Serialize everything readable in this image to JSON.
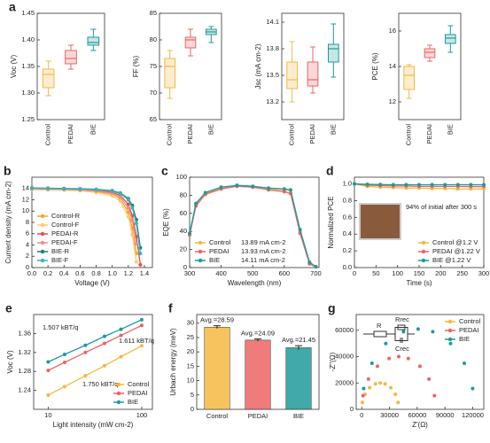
{
  "chart_data": [
    {
      "type": "box",
      "panel": "a",
      "ylabel": "Voc (V)",
      "categories": [
        "Control",
        "PEDAI",
        "BIE"
      ],
      "colors": [
        "#f5b841",
        "#ec6464",
        "#1f9a9a"
      ],
      "boxes": [
        {
          "min": 1.295,
          "q1": 1.31,
          "median": 1.335,
          "q3": 1.345,
          "max": 1.36
        },
        {
          "min": 1.345,
          "q1": 1.355,
          "median": 1.365,
          "q3": 1.38,
          "max": 1.39
        },
        {
          "min": 1.38,
          "q1": 1.39,
          "median": 1.395,
          "q3": 1.405,
          "max": 1.42
        }
      ],
      "ylim": [
        1.25,
        1.45
      ],
      "yticks": [
        1.25,
        {
          "value": 1.3,
          "label": "1.30"
        },
        1.35,
        {
          "value": 1.4,
          "label": "1.40"
        },
        1.45
      ]
    },
    {
      "type": "box",
      "ylabel": "FF (%)",
      "categories": [
        "Control",
        "PEDAI",
        "BIE"
      ],
      "colors": [
        "#f5b841",
        "#ec6464",
        "#1f9a9a"
      ],
      "boxes": [
        {
          "min": 69,
          "q1": 71,
          "median": 75,
          "q3": 76.5,
          "max": 78
        },
        {
          "min": 77,
          "q1": 78.5,
          "median": 80,
          "q3": 80.5,
          "max": 82
        },
        {
          "min": 79.5,
          "q1": 81,
          "median": 81.5,
          "q3": 82,
          "max": 82.5
        }
      ],
      "ylim": [
        65,
        85
      ],
      "yticks": [
        65,
        70,
        75,
        80,
        85
      ]
    },
    {
      "type": "box",
      "ylabel": "Jsc (mA cm-2)",
      "categories": [
        "Control",
        "PEDAI",
        "BIE"
      ],
      "colors": [
        "#f5b841",
        "#ec6464",
        "#1f9a9a"
      ],
      "boxes": [
        {
          "min": 13.2,
          "q1": 13.35,
          "median": 13.45,
          "q3": 13.65,
          "max": 13.88
        },
        {
          "min": 13.3,
          "q1": 13.38,
          "median": 13.45,
          "q3": 13.65,
          "max": 13.82
        },
        {
          "min": 13.48,
          "q1": 13.65,
          "median": 13.8,
          "q3": 13.85,
          "max": 14.08
        }
      ],
      "ylim": [
        13.0,
        14.2
      ],
      "yticks": [
        13.2,
        13.5,
        13.8,
        14.1
      ]
    },
    {
      "type": "box",
      "ylabel": "PCE (%)",
      "categories": [
        "Control",
        "PEDAI",
        "BIE"
      ],
      "colors": [
        "#f5b841",
        "#ec6464",
        "#1f9a9a"
      ],
      "boxes": [
        {
          "min": 12.2,
          "q1": 12.7,
          "median": 13.5,
          "q3": 14.0,
          "max": 14.1
        },
        {
          "min": 14.3,
          "q1": 14.5,
          "median": 14.8,
          "q3": 15.0,
          "max": 15.2
        },
        {
          "min": 14.8,
          "q1": 15.3,
          "median": 15.6,
          "q3": 15.8,
          "max": 16.3
        }
      ],
      "ylim": [
        11,
        17
      ],
      "yticks": [
        12,
        14,
        16
      ]
    },
    {
      "type": "line",
      "panel": "b",
      "xlabel": "Voltage (V)",
      "ylabel": "Current density (mA cm-2)",
      "legend": "lower left",
      "x": [
        0,
        0.2,
        0.4,
        0.6,
        0.8,
        1.0,
        1.1,
        1.2,
        1.25,
        1.3,
        1.35,
        1.4
      ],
      "series": [
        {
          "name": "Control-R",
          "color": "#f5a623",
          "values": [
            13.9,
            13.85,
            13.8,
            13.7,
            13.5,
            13.0,
            12.2,
            9.8,
            7.0,
            2.5,
            null,
            null
          ]
        },
        {
          "name": "Control-F",
          "color": "#f9cd6b",
          "values": [
            13.8,
            13.75,
            13.7,
            13.6,
            13.3,
            12.7,
            11.8,
            9.0,
            5.8,
            1.0,
            null,
            null
          ]
        },
        {
          "name": "PEDAI-R",
          "color": "#e84c4c",
          "values": [
            14.0,
            13.95,
            13.9,
            13.8,
            13.65,
            13.3,
            12.8,
            11.2,
            9.2,
            5.5,
            0.5,
            null
          ]
        },
        {
          "name": "PEDAI-F",
          "color": "#f28b8b",
          "values": [
            13.95,
            13.9,
            13.85,
            13.75,
            13.55,
            13.15,
            12.5,
            10.6,
            8.4,
            4.2,
            null,
            null
          ]
        },
        {
          "name": "BIE-R",
          "color": "#14807f",
          "values": [
            14.1,
            14.05,
            14.0,
            13.95,
            13.85,
            13.6,
            13.2,
            12.2,
            11.0,
            8.5,
            3.5,
            null
          ]
        },
        {
          "name": "BIE-F",
          "color": "#3bb3b3",
          "values": [
            14.05,
            14.0,
            13.95,
            13.9,
            13.8,
            13.5,
            13.1,
            12.0,
            10.6,
            7.8,
            2.5,
            null
          ]
        }
      ],
      "xlim": [
        0,
        1.5
      ],
      "xticks": [
        {
          "value": 0,
          "label": "0.0"
        },
        0.2,
        0.4,
        0.6,
        0.8,
        {
          "value": 1,
          "label": "1.0"
        },
        1.2,
        1.4
      ],
      "ylim": [
        0,
        16
      ],
      "yticks": [
        0,
        2,
        4,
        6,
        8,
        10,
        12,
        14
      ]
    },
    {
      "type": "line",
      "panel": "c",
      "xlabel": "Wavelength (nm)",
      "ylabel": "EQE (%)",
      "legend": "lower left",
      "x": [
        300,
        320,
        350,
        400,
        450,
        500,
        550,
        600,
        620,
        650,
        680,
        700
      ],
      "series": [
        {
          "name": "Control",
          "integrated": "13.89 mA cm-2",
          "color": "#f5b841",
          "values": [
            37,
            70,
            82,
            88,
            90,
            89,
            87,
            86,
            85,
            40,
            5,
            1
          ]
        },
        {
          "name": "PEDAI",
          "integrated": "13.93 mA cm-2",
          "color": "#ec6464",
          "values": [
            36,
            68,
            81,
            87,
            90,
            89,
            86,
            84,
            82,
            38,
            4,
            1
          ]
        },
        {
          "name": "BIE",
          "integrated": "14.11 mA cm-2",
          "color": "#1f9a9a",
          "values": [
            38,
            71,
            83,
            89,
            91,
            90,
            88,
            87,
            86,
            42,
            6,
            1
          ]
        }
      ],
      "xlim": [
        300,
        710
      ],
      "xticks": [
        300,
        400,
        500,
        600,
        700
      ],
      "ylim": [
        0,
        100
      ],
      "yticks": [
        0,
        20,
        40,
        60,
        80,
        100
      ]
    },
    {
      "type": "line",
      "panel": "d",
      "xlabel": "Time (s)",
      "ylabel": "Normalized PCE",
      "legend": "lower right",
      "annotation": "94% of initial after 300 s",
      "x": [
        0,
        30,
        60,
        90,
        120,
        150,
        180,
        210,
        240,
        270,
        300
      ],
      "series": [
        {
          "name": "Control @1.2 V",
          "color": "#f5b841",
          "values": [
            1.0,
            0.97,
            0.96,
            0.955,
            0.95,
            0.95,
            0.945,
            0.945,
            0.94,
            0.94,
            0.94
          ]
        },
        {
          "name": "PEDAI @1.22 V",
          "color": "#ec6464",
          "values": [
            1.0,
            0.985,
            0.98,
            0.975,
            0.975,
            0.97,
            0.97,
            0.97,
            0.97,
            0.968,
            0.968
          ]
        },
        {
          "name": "BIE @1.22 V",
          "color": "#1f9a9a",
          "values": [
            1.0,
            0.995,
            0.993,
            0.99,
            0.99,
            0.99,
            0.99,
            0.99,
            0.99,
            0.99,
            0.99
          ]
        }
      ],
      "xlim": [
        0,
        300
      ],
      "xticks": [
        0,
        50,
        100,
        150,
        200,
        250,
        300
      ],
      "ylim": [
        0,
        1.08
      ],
      "yticks": [
        {
          "value": 0,
          "label": "0.0"
        },
        0.2,
        0.4,
        0.6,
        0.8,
        {
          "value": 1,
          "label": "1.0"
        }
      ]
    },
    {
      "type": "line",
      "panel": "e",
      "xlabel": "Light intensity (mW cm-2)",
      "ylabel": "Voc (V)",
      "legend": "lower right",
      "xlog": true,
      "x": [
        10,
        15,
        25,
        40,
        60,
        100
      ],
      "series": [
        {
          "name": "Control",
          "slope_label": "1.750 kBT/q",
          "color": "#f5b841",
          "values": [
            1.23,
            1.248,
            1.271,
            1.292,
            1.311,
            1.334
          ]
        },
        {
          "name": "PEDAI",
          "slope_label": "1.611 kBT/q",
          "color": "#ec6464",
          "values": [
            1.282,
            1.299,
            1.32,
            1.339,
            1.356,
            1.377
          ]
        },
        {
          "name": "BIE",
          "slope_label": "1.507 kBT/q",
          "color": "#1f9a9a",
          "values": [
            1.3,
            1.316,
            1.335,
            1.354,
            1.369,
            1.389
          ]
        }
      ],
      "xlim": [
        7,
        130
      ],
      "xticks": [
        10,
        100
      ],
      "ylim": [
        1.2,
        1.4
      ],
      "yticks": [
        1.24,
        1.28,
        1.32,
        1.36
      ]
    },
    {
      "type": "bar",
      "panel": "f",
      "ylabel": "Urbach energy (meV)",
      "categories": [
        "Control",
        "PEDAI",
        "BIE"
      ],
      "colors": [
        "#f5b841",
        "#ec6464",
        "#1f9a9a"
      ],
      "values": [
        28.59,
        24.09,
        21.45
      ],
      "errors": [
        0.5,
        0.4,
        0.7
      ],
      "value_labels": [
        "Avg.=28.59",
        "Avg.=24.09",
        "Avg.=21.45"
      ],
      "ylim": [
        0,
        33
      ],
      "yticks": [
        0,
        5,
        10,
        15,
        20,
        25,
        30
      ]
    },
    {
      "type": "scatter",
      "panel": "g",
      "xlabel": "Z'(Ω)",
      "ylabel": "-Z''(Ω)",
      "legend": "upper right",
      "circuit": [
        "R",
        "Rrec",
        "Crec"
      ],
      "series": [
        {
          "name": "Control",
          "color": "#f5b841",
          "x": [
            680,
            3620,
            8520,
            14820,
            20000,
            25180,
            31480,
            36380,
            39320
          ],
          "values": [
            5180,
            11480,
            16380,
            19320,
            20000,
            19320,
            16380,
            11480,
            5180
          ]
        },
        {
          "name": "PEDAI",
          "color": "#ec6464",
          "x": [
            1360,
            7240,
            17040,
            29640,
            40000,
            50360,
            62960,
            72760,
            78640
          ],
          "values": [
            10360,
            22960,
            32760,
            38640,
            40000,
            38640,
            32760,
            22960,
            10360
          ]
        },
        {
          "name": "BIE",
          "color": "#1f9a9a",
          "x": [
            2074,
            11041,
            25986,
            45201,
            61000,
            76799,
            96014,
            110959,
            119926
          ],
          "values": [
            15799,
            35014,
            49959,
            58926,
            61000,
            58926,
            49959,
            35014,
            15799
          ]
        }
      ],
      "xlim": [
        -6000,
        132000
      ],
      "xticks": [
        0,
        30000,
        60000,
        90000,
        120000
      ],
      "ylim": [
        0,
        72000
      ],
      "yticks": [
        0,
        20000,
        40000,
        60000
      ]
    }
  ]
}
